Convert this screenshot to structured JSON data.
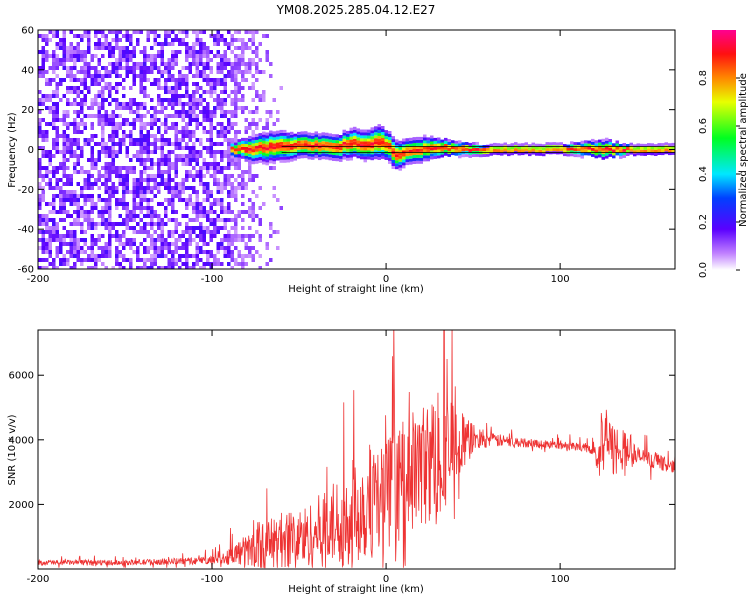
{
  "title": "YM08.2025.285.04.12.E27",
  "chart_data": [
    {
      "type": "heatmap",
      "xlabel": "Height of straight line (km)",
      "ylabel": "Frequency (Hz)",
      "xlim": [
        -200,
        166
      ],
      "ylim": [
        -60,
        60
      ],
      "xticks": [
        -200,
        -100,
        0,
        100
      ],
      "yticks": [
        -60,
        -40,
        -20,
        0,
        20,
        40,
        60
      ],
      "xtick_labels": [
        "-200",
        "-100",
        "0",
        "100"
      ],
      "ytick_labels": [
        "-60",
        "-40",
        "-20",
        "0",
        "20",
        "40",
        "60"
      ],
      "noise_region": {
        "x_from": -200,
        "x_to": -60,
        "dense_until": -90
      },
      "signal_band": [
        {
          "x": -88,
          "freq": 0,
          "width": 3
        },
        {
          "x": -80,
          "freq": 0,
          "width": 5
        },
        {
          "x": -70,
          "freq": 1,
          "width": 6
        },
        {
          "x": -60,
          "freq": 2,
          "width": 6
        },
        {
          "x": -50,
          "freq": 2,
          "width": 5
        },
        {
          "x": -40,
          "freq": 2,
          "width": 5
        },
        {
          "x": -30,
          "freq": 1,
          "width": 5
        },
        {
          "x": -20,
          "freq": 3,
          "width": 6
        },
        {
          "x": -12,
          "freq": 2,
          "width": 6
        },
        {
          "x": -5,
          "freq": 4,
          "width": 7
        },
        {
          "x": 0,
          "freq": 2,
          "width": 6
        },
        {
          "x": 5,
          "freq": -3,
          "width": 6
        },
        {
          "x": 12,
          "freq": -1,
          "width": 5
        },
        {
          "x": 20,
          "freq": 0,
          "width": 5
        },
        {
          "x": 30,
          "freq": 1,
          "width": 4
        },
        {
          "x": 40,
          "freq": 0,
          "width": 3
        },
        {
          "x": 60,
          "freq": 0,
          "width": 2
        },
        {
          "x": 100,
          "freq": 0,
          "width": 2
        },
        {
          "x": 125,
          "freq": 0,
          "width": 4
        },
        {
          "x": 140,
          "freq": 0,
          "width": 2
        },
        {
          "x": 166,
          "freq": 0,
          "width": 2
        }
      ],
      "reference_lines": [
        -1.5,
        1.5
      ]
    },
    {
      "type": "line",
      "xlabel": "Height of straight line (km)",
      "ylabel": "SNR (10 * v/v)",
      "xlim": [
        -200,
        166
      ],
      "ylim": [
        0,
        7400
      ],
      "xticks": [
        -200,
        -100,
        0,
        100
      ],
      "yticks": [
        2000,
        4000,
        6000
      ],
      "xtick_labels": [
        "-200",
        "-100",
        "0",
        "100"
      ],
      "ytick_labels": [
        "2000",
        "4000",
        "6000"
      ],
      "color": "#ee3333",
      "envelope": [
        {
          "x": -200,
          "base": 200,
          "amp": 150
        },
        {
          "x": -150,
          "base": 200,
          "amp": 150
        },
        {
          "x": -110,
          "base": 250,
          "amp": 200
        },
        {
          "x": -95,
          "base": 300,
          "amp": 300
        },
        {
          "x": -85,
          "base": 500,
          "amp": 700
        },
        {
          "x": -70,
          "base": 700,
          "amp": 1400
        },
        {
          "x": -60,
          "base": 900,
          "amp": 1600
        },
        {
          "x": -45,
          "base": 1000,
          "amp": 1800
        },
        {
          "x": -30,
          "base": 1400,
          "amp": 2400
        },
        {
          "x": -15,
          "base": 1900,
          "amp": 3200
        },
        {
          "x": 0,
          "base": 2300,
          "amp": 3200
        },
        {
          "x": 15,
          "base": 3000,
          "amp": 3400
        },
        {
          "x": 30,
          "base": 3500,
          "amp": 3600
        },
        {
          "x": 40,
          "base": 3800,
          "amp": 2400
        },
        {
          "x": 50,
          "base": 4050,
          "amp": 800
        },
        {
          "x": 60,
          "base": 4000,
          "amp": 400
        },
        {
          "x": 80,
          "base": 3900,
          "amp": 250
        },
        {
          "x": 110,
          "base": 3800,
          "amp": 250
        },
        {
          "x": 120,
          "base": 3700,
          "amp": 300
        },
        {
          "x": 122,
          "base": 3700,
          "amp": 2200
        },
        {
          "x": 135,
          "base": 3700,
          "amp": 1300
        },
        {
          "x": 145,
          "base": 3500,
          "amp": 500
        },
        {
          "x": 166,
          "base": 3150,
          "amp": 350
        }
      ]
    }
  ],
  "colorbar": {
    "label": "Normalized spectral amplitude",
    "range": [
      0,
      1
    ],
    "ticks": [
      0.0,
      0.2,
      0.4,
      0.6,
      0.8
    ],
    "tick_labels": [
      "0.0",
      "0.2",
      "0.4",
      "0.6",
      "0.8"
    ]
  }
}
